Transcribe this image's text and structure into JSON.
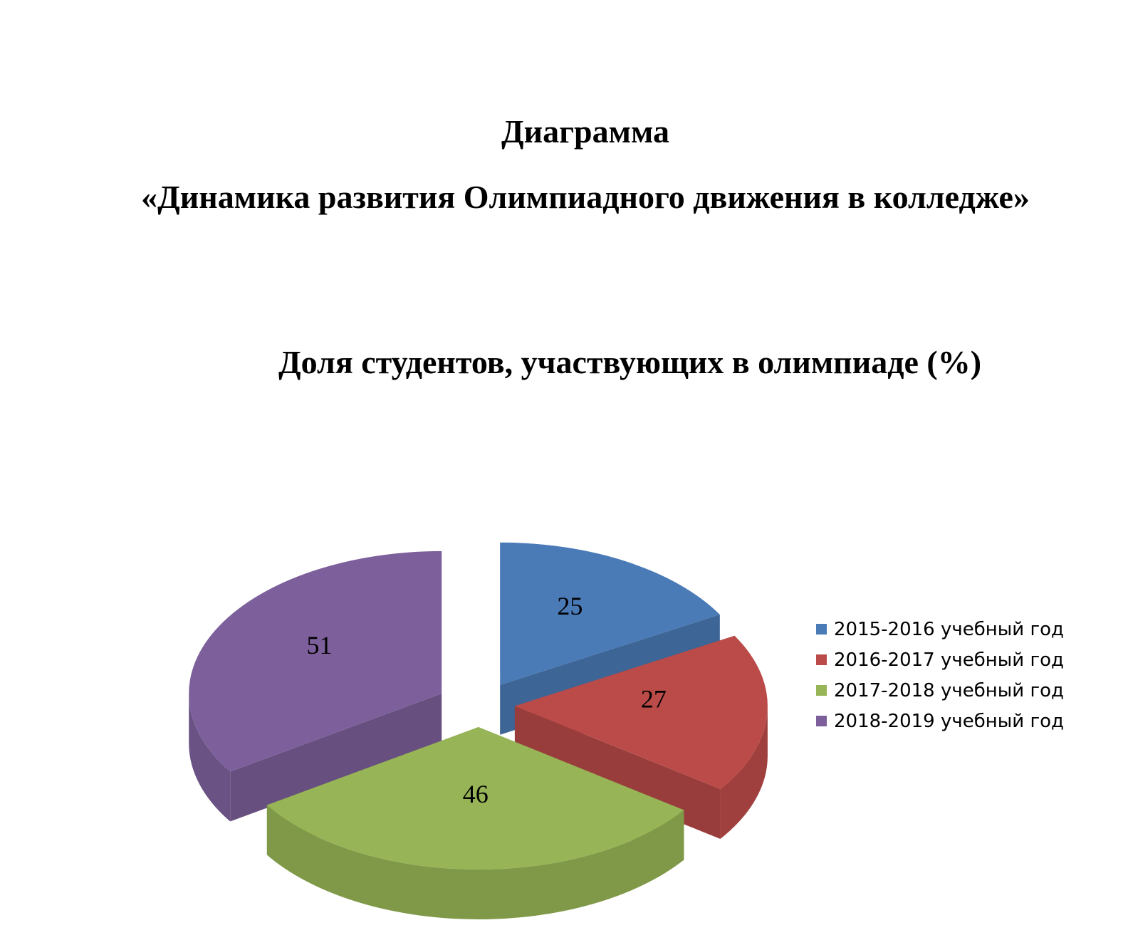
{
  "heading": {
    "line1": "Диаграмма",
    "line2": "«Динамика развития Олимпиадного движения в колледже»"
  },
  "chart_data": {
    "type": "pie",
    "title": "Доля студентов, участвующих в олимпиаде (%)",
    "categories": [
      "2015-2016 учебный год",
      "2016-2017 учебный год",
      "2017-2018 учебный год",
      "2018-2019 учебный год"
    ],
    "values": [
      25,
      27,
      46,
      51
    ],
    "colors": [
      "#4a7bb7",
      "#bb4b49",
      "#97b456",
      "#7d609b"
    ],
    "exploded": true,
    "style": "3d",
    "legend": "right"
  }
}
